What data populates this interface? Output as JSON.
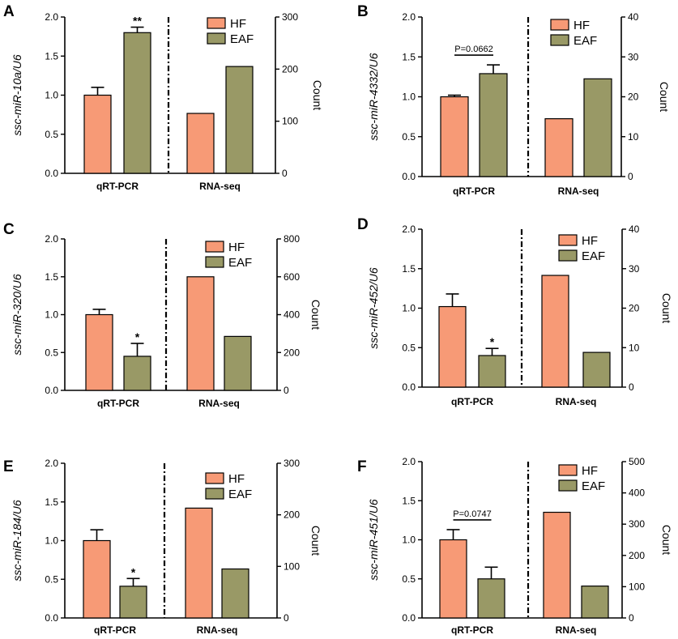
{
  "chart_data": [
    {
      "type": "bar",
      "panel_label": "A",
      "ylabel": "ssc-miR-10a/U6",
      "y2label": "Count",
      "ylim": [
        0,
        2.0
      ],
      "y_ticks": [
        "0.0",
        "0.5",
        "1.0",
        "1.5",
        "2.0"
      ],
      "y2lim": [
        0,
        300
      ],
      "y2_ticks": [
        "0",
        "100",
        "200",
        "300"
      ],
      "categories": [
        "qRT-PCR",
        "RNA-seq"
      ],
      "legend": [
        "HF",
        "EAF"
      ],
      "legend_placement": "top-right",
      "series": [
        {
          "name": "HF",
          "color": "#f79a76",
          "qrt_value": 1.0,
          "qrt_error": 0.1,
          "rnaseq_count": 115
        },
        {
          "name": "EAF",
          "color": "#999966",
          "qrt_value": 1.8,
          "qrt_error": 0.07,
          "rnaseq_count": 205
        }
      ],
      "annotation": {
        "type": "stars",
        "text": "**",
        "on": "EAF"
      }
    },
    {
      "type": "bar",
      "panel_label": "B",
      "ylabel": "ssc-miR-4332/U6",
      "y2label": "Count",
      "ylim": [
        0,
        2.0
      ],
      "y_ticks": [
        "0.0",
        "0.5",
        "1.0",
        "1.5",
        "2.0"
      ],
      "y2lim": [
        0,
        40
      ],
      "y2_ticks": [
        "0",
        "10",
        "20",
        "30",
        "40"
      ],
      "categories": [
        "qRT-PCR",
        "RNA-seq"
      ],
      "legend": [
        "HF",
        "EAF"
      ],
      "legend_placement": "top-right",
      "series": [
        {
          "name": "HF",
          "color": "#f79a76",
          "qrt_value": 1.0,
          "qrt_error": 0.02,
          "rnaseq_count": 14.5
        },
        {
          "name": "EAF",
          "color": "#999966",
          "qrt_value": 1.29,
          "qrt_error": 0.11,
          "rnaseq_count": 24.5
        }
      ],
      "annotation": {
        "type": "p",
        "text": "P=0.0662"
      }
    },
    {
      "type": "bar",
      "panel_label": "C",
      "ylabel": "ssc-miR-320/U6",
      "y2label": "Count",
      "ylim": [
        0,
        2.0
      ],
      "y_ticks": [
        "0.0",
        "0.5",
        "1.0",
        "1.5",
        "2.0"
      ],
      "y2lim": [
        0,
        800
      ],
      "y2_ticks": [
        "0",
        "200",
        "400",
        "600",
        "800"
      ],
      "categories": [
        "qRT-PCR",
        "RNA-seq"
      ],
      "legend": [
        "HF",
        "EAF"
      ],
      "legend_placement": "top-right",
      "series": [
        {
          "name": "HF",
          "color": "#f79a76",
          "qrt_value": 1.0,
          "qrt_error": 0.07,
          "rnaseq_count": 600
        },
        {
          "name": "EAF",
          "color": "#999966",
          "qrt_value": 0.45,
          "qrt_error": 0.17,
          "rnaseq_count": 285
        }
      ],
      "annotation": {
        "type": "stars",
        "text": "*",
        "on": "EAF"
      }
    },
    {
      "type": "bar",
      "panel_label": "D",
      "ylabel": "ssc-miR-452/U6",
      "y2label": "Count",
      "ylim": [
        0,
        2.0
      ],
      "y_ticks": [
        "0.0",
        "0.5",
        "1.0",
        "1.5",
        "2.0"
      ],
      "y2lim": [
        0,
        40
      ],
      "y2_ticks": [
        "0",
        "10",
        "20",
        "30",
        "40"
      ],
      "categories": [
        "qRT-PCR",
        "RNA-seq"
      ],
      "legend": [
        "HF",
        "EAF"
      ],
      "legend_placement": "top-right",
      "series": [
        {
          "name": "HF",
          "color": "#f79a76",
          "qrt_value": 1.02,
          "qrt_error": 0.16,
          "rnaseq_count": 28.3
        },
        {
          "name": "EAF",
          "color": "#999966",
          "qrt_value": 0.4,
          "qrt_error": 0.09,
          "rnaseq_count": 8.8
        }
      ],
      "annotation": {
        "type": "stars",
        "text": "*",
        "on": "EAF"
      }
    },
    {
      "type": "bar",
      "panel_label": "E",
      "ylabel": "ssc-miR-184/U6",
      "y2label": "Count",
      "ylim": [
        0,
        2.0
      ],
      "y_ticks": [
        "0.0",
        "0.5",
        "1.0",
        "1.5",
        "2.0"
      ],
      "y2lim": [
        0,
        300
      ],
      "y2_ticks": [
        "0",
        "100",
        "200",
        "300"
      ],
      "categories": [
        "qRT-PCR",
        "RNA-seq"
      ],
      "legend": [
        "HF",
        "EAF"
      ],
      "legend_placement": "top-right",
      "series": [
        {
          "name": "HF",
          "color": "#f79a76",
          "qrt_value": 1.0,
          "qrt_error": 0.14,
          "rnaseq_count": 213
        },
        {
          "name": "EAF",
          "color": "#999966",
          "qrt_value": 0.41,
          "qrt_error": 0.1,
          "rnaseq_count": 95
        }
      ],
      "annotation": {
        "type": "stars",
        "text": "*",
        "on": "EAF"
      }
    },
    {
      "type": "bar",
      "panel_label": "F",
      "ylabel": "ssc-miR-451/U6",
      "y2label": "Count",
      "ylim": [
        0,
        2.0
      ],
      "y_ticks": [
        "0.0",
        "0.5",
        "1.0",
        "1.5",
        "2.0"
      ],
      "y2lim": [
        0,
        500
      ],
      "y2_ticks": [
        "0",
        "100",
        "200",
        "300",
        "400",
        "500"
      ],
      "categories": [
        "qRT-PCR",
        "RNA-seq"
      ],
      "legend": [
        "HF",
        "EAF"
      ],
      "legend_placement": "top-right",
      "series": [
        {
          "name": "HF",
          "color": "#f79a76",
          "qrt_value": 1.0,
          "qrt_error": 0.13,
          "rnaseq_count": 338
        },
        {
          "name": "EAF",
          "color": "#999966",
          "qrt_value": 0.5,
          "qrt_error": 0.15,
          "rnaseq_count": 102
        }
      ],
      "annotation": {
        "type": "p",
        "text": "P=0.0747"
      }
    }
  ]
}
